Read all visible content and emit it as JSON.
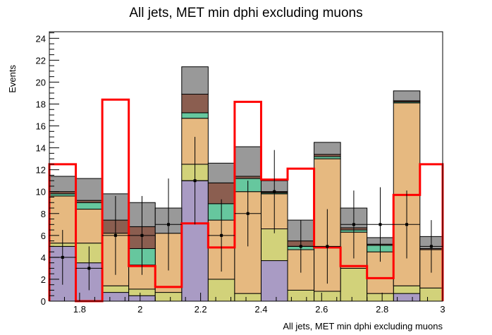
{
  "chart_data": {
    "type": "bar",
    "title": "All jets, MET min dphi excluding muons",
    "xlabel": "All jets, MET min dphi excluding muons",
    "ylabel": "Events",
    "xlim": [
      1.7,
      3.0
    ],
    "ylim": [
      0,
      24.6
    ],
    "x_ticks": [
      "1.8",
      "2",
      "2.2",
      "2.4",
      "2.6",
      "2.8",
      "3"
    ],
    "y_ticks": [
      "0",
      "2",
      "4",
      "6",
      "8",
      "10",
      "12",
      "14",
      "16",
      "18",
      "20",
      "22",
      "24"
    ],
    "bin_edges": [
      1.7,
      1.7875,
      1.875,
      1.9625,
      2.05,
      2.1375,
      2.225,
      2.3125,
      2.4,
      2.4875,
      2.575,
      2.6625,
      2.75,
      2.8375,
      2.925,
      3.0
    ],
    "stack_colors": [
      "#a99bc4",
      "#d2d27a",
      "#e6b980",
      "#66c79e",
      "#8b5e50",
      "#999999"
    ],
    "stacked_series": [
      {
        "values": [
          5.0,
          3.5,
          0.8,
          0.5,
          0.0,
          11.0,
          0.0,
          0.0,
          3.7,
          0.0,
          0.0,
          0.0,
          0.0,
          0.7,
          0.0
        ]
      },
      {
        "values": [
          0.3,
          1.8,
          0.6,
          0.6,
          0.8,
          1.5,
          2.0,
          0.7,
          2.9,
          1.0,
          0.9,
          3.0,
          0.7,
          0.7,
          1.2
        ]
      },
      {
        "values": [
          4.3,
          3.1,
          4.8,
          2.2,
          5.4,
          4.2,
          5.4,
          9.3,
          3.2,
          3.7,
          12.1,
          3.3,
          3.8,
          16.7,
          3.5
        ]
      },
      {
        "values": [
          0.2,
          0.6,
          0.0,
          1.5,
          0.0,
          0.5,
          1.5,
          1.2,
          0.1,
          0.3,
          0.2,
          0.2,
          0.6,
          0.1,
          0.0
        ]
      },
      {
        "values": [
          0.2,
          0.2,
          1.2,
          2.0,
          0.0,
          1.7,
          1.9,
          0.2,
          0.1,
          0.5,
          0.2,
          0.2,
          0.1,
          0.1,
          0.1
        ]
      },
      {
        "values": [
          1.4,
          2.0,
          2.4,
          2.2,
          2.3,
          2.5,
          1.8,
          2.7,
          1.0,
          1.9,
          1.1,
          1.8,
          0.6,
          0.9,
          1.1
        ]
      }
    ],
    "overlay_line": {
      "color": "#ff0000",
      "values": [
        12.5,
        0.0,
        18.4,
        3.2,
        1.3,
        7.1,
        4.9,
        18.2,
        11.1,
        12.1,
        4.9,
        3.2,
        2.1,
        9.7,
        12.5
      ]
    },
    "data_points": {
      "values": [
        4,
        3,
        6,
        6,
        7,
        11,
        6,
        8,
        10,
        5,
        5,
        7,
        7,
        7,
        5
      ],
      "errors": [
        2.5,
        2.0,
        3.6,
        3.6,
        4.2,
        4.0,
        3.3,
        3.0,
        3.8,
        2.4,
        3.4,
        3.1,
        3.4,
        3.1,
        2.4
      ]
    }
  }
}
